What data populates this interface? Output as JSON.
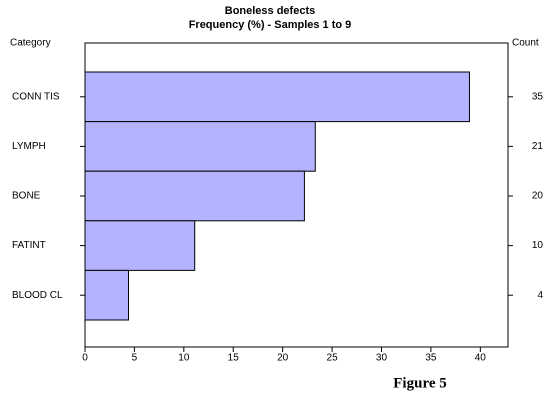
{
  "chart_data": {
    "type": "hbar",
    "title": "Boneless defects",
    "subtitle": "Frequency (%)  -  Samples 1 to 9",
    "y_label": "Category",
    "y2_label": "Count",
    "categories": [
      "CONN TIS",
      "LYMPH",
      "BONE",
      "FATINT",
      "BLOOD CL"
    ],
    "values": [
      38.9,
      23.3,
      22.2,
      11.1,
      4.4
    ],
    "counts": [
      35,
      21,
      20,
      10,
      4
    ],
    "color": "#b3b3ff",
    "xlim": [
      0,
      42.8
    ],
    "xticks": [
      0,
      5,
      10,
      15,
      20,
      25,
      30,
      35,
      40
    ],
    "caption": "Figure 5"
  }
}
